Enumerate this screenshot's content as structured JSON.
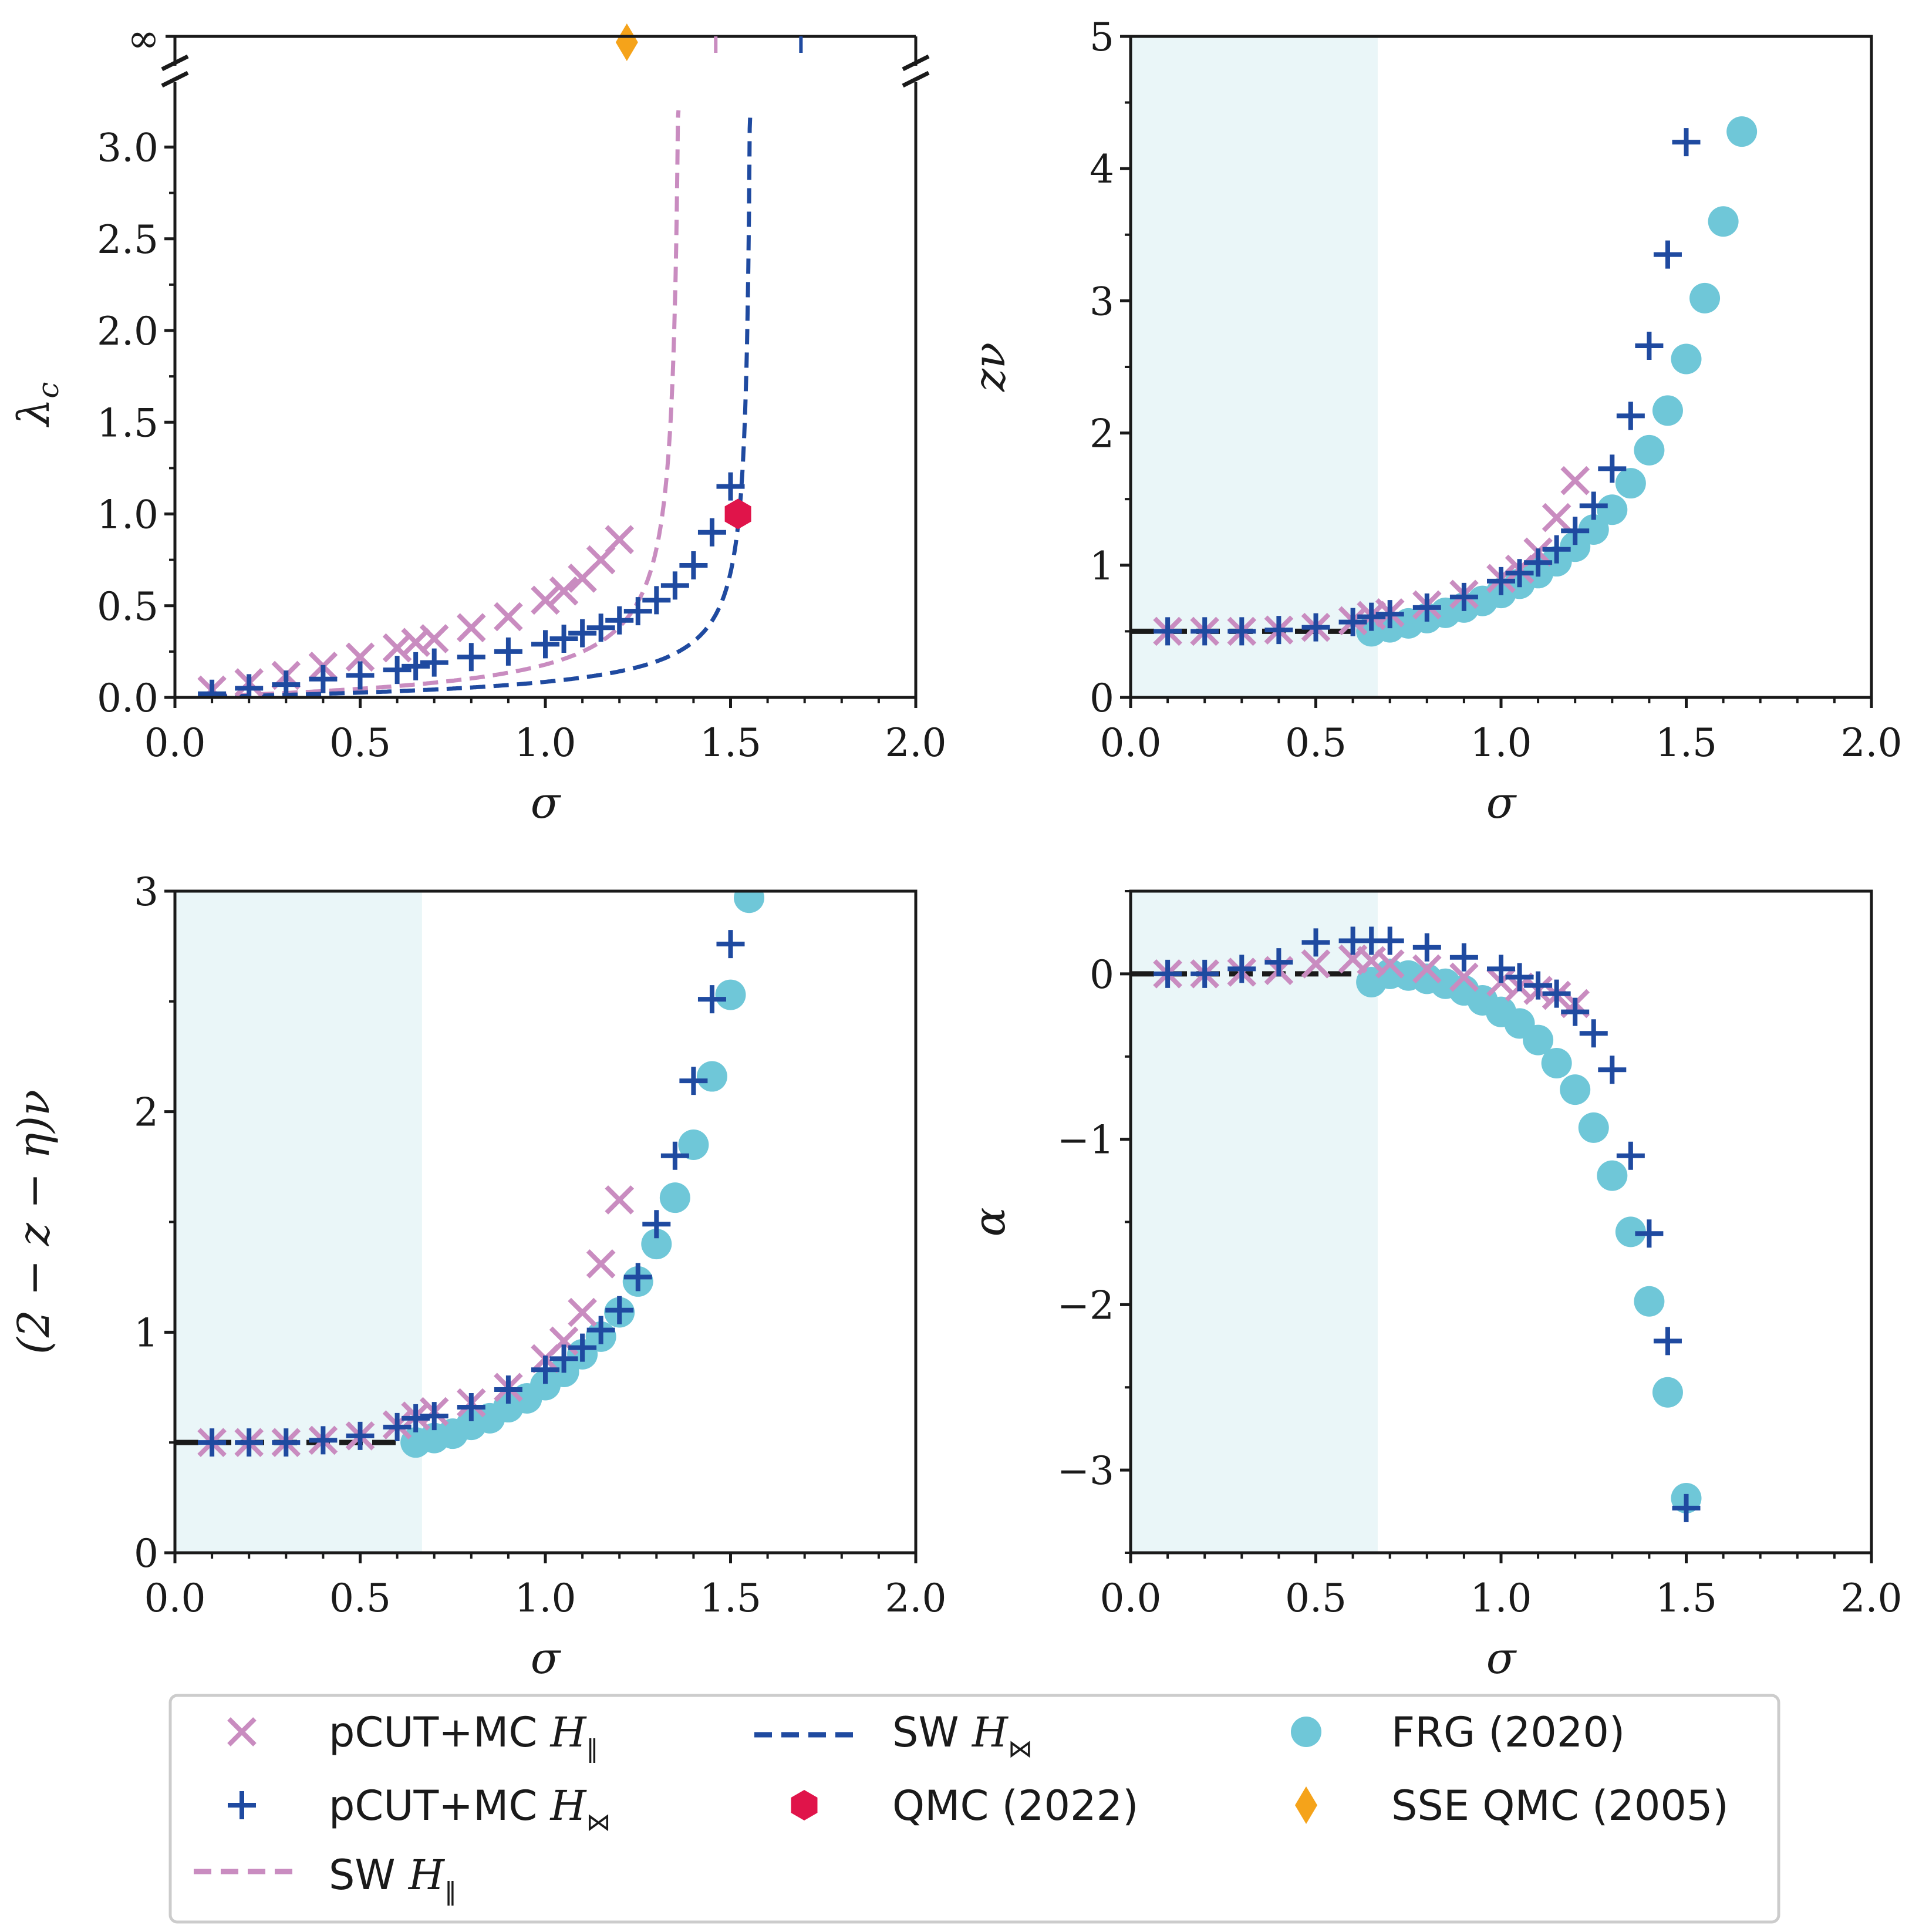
{
  "colors": {
    "pcut_ii": "#c98cc0",
    "pcut_bowtie": "#1f4aa0",
    "sw_ii": "#c98cc0",
    "sw_bowtie": "#1f4aa0",
    "frg": "#6fc7d8",
    "qmc2022": "#e0144a",
    "sse2005": "#f5a31a",
    "shade": "#eaf6f8",
    "mf_line": "#1a1a1a"
  },
  "legend": {
    "pcut_ii": "pCUT+MC",
    "pcut_ii_sym": "H",
    "pcut_ii_sub": "‖",
    "pcut_bowtie": "pCUT+MC",
    "pcut_bowtie_sym": "H",
    "pcut_bowtie_sub": "⋈",
    "sw_ii": "SW",
    "sw_ii_sym": "H",
    "sw_ii_sub": "‖",
    "sw_bowtie": "SW",
    "sw_bowtie_sym": "H",
    "sw_bowtie_sub": "⋈",
    "qmc2022": "QMC (2022)",
    "frg": "FRG (2020)",
    "sse2005": "SSE QMC (2005)"
  },
  "chart_data": [
    {
      "type": "scatter",
      "panel": "top-left",
      "xlabel": "σ",
      "ylabel": "λ_c",
      "ylabel_main": "λ",
      "ylabel_sub": "c",
      "xlim": [
        0,
        2
      ],
      "ylim": [
        0,
        3.2
      ],
      "xticks": [
        "0.0",
        "0.5",
        "1.0",
        "1.5",
        "2.0"
      ],
      "yticks": [
        "0.0",
        "0.5",
        "1.0",
        "1.5",
        "2.0",
        "2.5",
        "3.0"
      ],
      "infinity_label": "∞",
      "shaded_region": null,
      "series": [
        {
          "name": "pCUT+MC H_ii",
          "marker": "x",
          "points": [
            [
              0.1,
              0.04
            ],
            [
              0.2,
              0.08
            ],
            [
              0.3,
              0.12
            ],
            [
              0.4,
              0.17
            ],
            [
              0.5,
              0.22
            ],
            [
              0.6,
              0.27
            ],
            [
              0.65,
              0.3
            ],
            [
              0.7,
              0.32
            ],
            [
              0.8,
              0.38
            ],
            [
              0.9,
              0.44
            ],
            [
              1.0,
              0.53
            ],
            [
              1.05,
              0.58
            ],
            [
              1.1,
              0.65
            ],
            [
              1.15,
              0.75
            ],
            [
              1.2,
              0.86
            ]
          ]
        },
        {
          "name": "pCUT+MC H_bowtie",
          "marker": "+",
          "points": [
            [
              0.1,
              0.02
            ],
            [
              0.2,
              0.05
            ],
            [
              0.3,
              0.07
            ],
            [
              0.4,
              0.1
            ],
            [
              0.5,
              0.12
            ],
            [
              0.6,
              0.15
            ],
            [
              0.65,
              0.17
            ],
            [
              0.7,
              0.19
            ],
            [
              0.8,
              0.22
            ],
            [
              0.9,
              0.25
            ],
            [
              1.0,
              0.29
            ],
            [
              1.05,
              0.32
            ],
            [
              1.1,
              0.35
            ],
            [
              1.15,
              0.38
            ],
            [
              1.2,
              0.42
            ],
            [
              1.25,
              0.47
            ],
            [
              1.3,
              0.53
            ],
            [
              1.35,
              0.61
            ],
            [
              1.4,
              0.72
            ],
            [
              1.45,
              0.9
            ],
            [
              1.5,
              1.15
            ]
          ]
        },
        {
          "name": "SW H_ii",
          "style": "dashed",
          "pole": 1.37,
          "scale": 0.085
        },
        {
          "name": "SW H_bowtie",
          "style": "dashed",
          "pole": 1.56,
          "scale": 0.055
        },
        {
          "name": "QMC (2022)",
          "marker": "hexagon",
          "points": [
            [
              1.52,
              1.0
            ]
          ]
        },
        {
          "name": "SSE QMC (2005)",
          "marker": "diamond",
          "points": [
            [
              1.22,
              "inf"
            ]
          ]
        }
      ],
      "infinity_ticks": [
        1.46,
        1.69
      ]
    },
    {
      "type": "scatter",
      "panel": "top-right",
      "xlabel": "σ",
      "ylabel": "zν",
      "xlim": [
        0,
        2
      ],
      "ylim": [
        0,
        5
      ],
      "xticks": [
        "0.0",
        "0.5",
        "1.0",
        "1.5",
        "2.0"
      ],
      "yticks": [
        "0",
        "1",
        "2",
        "3",
        "4",
        "5"
      ],
      "shaded_region": [
        0,
        0.667
      ],
      "mean_field_line": {
        "x": [
          0,
          0.667
        ],
        "y": 0.5
      },
      "series": [
        {
          "name": "pCUT+MC H_ii",
          "marker": "x",
          "points": [
            [
              0.1,
              0.5
            ],
            [
              0.2,
              0.5
            ],
            [
              0.3,
              0.5
            ],
            [
              0.4,
              0.51
            ],
            [
              0.5,
              0.53
            ],
            [
              0.6,
              0.58
            ],
            [
              0.65,
              0.62
            ],
            [
              0.7,
              0.64
            ],
            [
              0.8,
              0.7
            ],
            [
              0.9,
              0.78
            ],
            [
              1.0,
              0.9
            ],
            [
              1.05,
              0.97
            ],
            [
              1.1,
              1.1
            ],
            [
              1.15,
              1.36
            ],
            [
              1.2,
              1.64
            ]
          ]
        },
        {
          "name": "pCUT+MC H_bowtie",
          "marker": "+",
          "points": [
            [
              0.1,
              0.5
            ],
            [
              0.2,
              0.5
            ],
            [
              0.3,
              0.5
            ],
            [
              0.4,
              0.51
            ],
            [
              0.5,
              0.53
            ],
            [
              0.6,
              0.57
            ],
            [
              0.65,
              0.61
            ],
            [
              0.7,
              0.63
            ],
            [
              0.8,
              0.68
            ],
            [
              0.9,
              0.76
            ],
            [
              1.0,
              0.88
            ],
            [
              1.05,
              0.94
            ],
            [
              1.1,
              1.02
            ],
            [
              1.15,
              1.12
            ],
            [
              1.2,
              1.26
            ],
            [
              1.25,
              1.45
            ],
            [
              1.3,
              1.73
            ],
            [
              1.35,
              2.13
            ],
            [
              1.4,
              2.66
            ],
            [
              1.45,
              3.35
            ],
            [
              1.5,
              4.2
            ]
          ]
        },
        {
          "name": "FRG (2020)",
          "marker": "circle",
          "points": [
            [
              0.65,
              0.5
            ],
            [
              0.7,
              0.53
            ],
            [
              0.75,
              0.56
            ],
            [
              0.8,
              0.6
            ],
            [
              0.85,
              0.64
            ],
            [
              0.9,
              0.68
            ],
            [
              0.95,
              0.73
            ],
            [
              1.0,
              0.79
            ],
            [
              1.05,
              0.86
            ],
            [
              1.1,
              0.94
            ],
            [
              1.15,
              1.03
            ],
            [
              1.2,
              1.14
            ],
            [
              1.25,
              1.27
            ],
            [
              1.3,
              1.42
            ],
            [
              1.35,
              1.62
            ],
            [
              1.4,
              1.87
            ],
            [
              1.45,
              2.17
            ],
            [
              1.5,
              2.56
            ],
            [
              1.55,
              3.02
            ],
            [
              1.6,
              3.6
            ],
            [
              1.65,
              4.28
            ]
          ]
        }
      ]
    },
    {
      "type": "scatter",
      "panel": "bottom-left",
      "xlabel": "σ",
      "ylabel": "(2 − z − η)ν",
      "xlim": [
        0,
        2
      ],
      "ylim": [
        0,
        3
      ],
      "xticks": [
        "0.0",
        "0.5",
        "1.0",
        "1.5",
        "2.0"
      ],
      "yticks": [
        "0",
        "1",
        "2",
        "3"
      ],
      "shaded_region": [
        0,
        0.667
      ],
      "mean_field_line": {
        "x": [
          0,
          0.667
        ],
        "y": 0.5
      },
      "series": [
        {
          "name": "pCUT+MC H_ii",
          "marker": "x",
          "points": [
            [
              0.1,
              0.5
            ],
            [
              0.2,
              0.5
            ],
            [
              0.3,
              0.5
            ],
            [
              0.4,
              0.51
            ],
            [
              0.5,
              0.53
            ],
            [
              0.6,
              0.58
            ],
            [
              0.65,
              0.62
            ],
            [
              0.7,
              0.64
            ],
            [
              0.8,
              0.68
            ],
            [
              0.9,
              0.75
            ],
            [
              1.0,
              0.88
            ],
            [
              1.05,
              0.96
            ],
            [
              1.1,
              1.09
            ],
            [
              1.15,
              1.31
            ],
            [
              1.2,
              1.6
            ]
          ]
        },
        {
          "name": "pCUT+MC H_bowtie",
          "marker": "+",
          "points": [
            [
              0.1,
              0.5
            ],
            [
              0.2,
              0.5
            ],
            [
              0.3,
              0.5
            ],
            [
              0.4,
              0.51
            ],
            [
              0.5,
              0.53
            ],
            [
              0.6,
              0.57
            ],
            [
              0.65,
              0.61
            ],
            [
              0.7,
              0.62
            ],
            [
              0.8,
              0.66
            ],
            [
              0.9,
              0.74
            ],
            [
              1.0,
              0.83
            ],
            [
              1.05,
              0.88
            ],
            [
              1.1,
              0.93
            ],
            [
              1.15,
              1.01
            ],
            [
              1.2,
              1.1
            ],
            [
              1.25,
              1.25
            ],
            [
              1.3,
              1.49
            ],
            [
              1.35,
              1.8
            ],
            [
              1.4,
              2.14
            ],
            [
              1.45,
              2.51
            ],
            [
              1.5,
              2.76
            ]
          ]
        },
        {
          "name": "FRG (2020)",
          "marker": "circle",
          "points": [
            [
              0.65,
              0.5
            ],
            [
              0.7,
              0.52
            ],
            [
              0.75,
              0.54
            ],
            [
              0.8,
              0.58
            ],
            [
              0.85,
              0.61
            ],
            [
              0.9,
              0.66
            ],
            [
              0.95,
              0.7
            ],
            [
              1.0,
              0.76
            ],
            [
              1.05,
              0.82
            ],
            [
              1.1,
              0.9
            ],
            [
              1.15,
              0.98
            ],
            [
              1.2,
              1.09
            ],
            [
              1.25,
              1.23
            ],
            [
              1.3,
              1.4
            ],
            [
              1.35,
              1.61
            ],
            [
              1.4,
              1.85
            ],
            [
              1.45,
              2.16
            ],
            [
              1.5,
              2.53
            ],
            [
              1.55,
              2.97
            ]
          ]
        }
      ]
    },
    {
      "type": "scatter",
      "panel": "bottom-right",
      "xlabel": "σ",
      "ylabel": "α",
      "xlim": [
        0,
        2
      ],
      "ylim": [
        -3.5,
        0.5
      ],
      "xticks": [
        "0.0",
        "0.5",
        "1.0",
        "1.5",
        "2.0"
      ],
      "yticks": [
        "−3",
        "−2",
        "−1",
        "0"
      ],
      "ytick_values": [
        -3,
        -2,
        -1,
        0
      ],
      "shaded_region": [
        0,
        0.667
      ],
      "mean_field_line": {
        "x": [
          0,
          0.667
        ],
        "y": 0
      },
      "series": [
        {
          "name": "pCUT+MC H_ii",
          "marker": "x",
          "points": [
            [
              0.1,
              0
            ],
            [
              0.2,
              0
            ],
            [
              0.3,
              0.01
            ],
            [
              0.4,
              0.02
            ],
            [
              0.5,
              0.06
            ],
            [
              0.6,
              0.09
            ],
            [
              0.65,
              0.08
            ],
            [
              0.7,
              0.06
            ],
            [
              0.8,
              0.03
            ],
            [
              0.9,
              -0.02
            ],
            [
              1.0,
              -0.05
            ],
            [
              1.05,
              -0.08
            ],
            [
              1.1,
              -0.1
            ],
            [
              1.15,
              -0.13
            ],
            [
              1.2,
              -0.18
            ]
          ]
        },
        {
          "name": "pCUT+MC H_bowtie",
          "marker": "+",
          "points": [
            [
              0.1,
              0
            ],
            [
              0.2,
              0
            ],
            [
              0.3,
              0.03
            ],
            [
              0.4,
              0.07
            ],
            [
              0.5,
              0.19
            ],
            [
              0.6,
              0.2
            ],
            [
              0.65,
              0.2
            ],
            [
              0.7,
              0.2
            ],
            [
              0.8,
              0.16
            ],
            [
              0.9,
              0.1
            ],
            [
              1.0,
              0.03
            ],
            [
              1.05,
              -0.02
            ],
            [
              1.1,
              -0.07
            ],
            [
              1.15,
              -0.12
            ],
            [
              1.2,
              -0.23
            ],
            [
              1.25,
              -0.36
            ],
            [
              1.3,
              -0.58
            ],
            [
              1.35,
              -1.1
            ],
            [
              1.4,
              -1.57
            ],
            [
              1.45,
              -2.22
            ],
            [
              1.5,
              -3.23
            ]
          ]
        },
        {
          "name": "FRG (2020)",
          "marker": "circle",
          "points": [
            [
              0.65,
              -0.05
            ],
            [
              0.7,
              0.0
            ],
            [
              0.75,
              -0.01
            ],
            [
              0.8,
              -0.03
            ],
            [
              0.85,
              -0.06
            ],
            [
              0.9,
              -0.1
            ],
            [
              0.95,
              -0.16
            ],
            [
              1.0,
              -0.23
            ],
            [
              1.05,
              -0.3
            ],
            [
              1.1,
              -0.4
            ],
            [
              1.15,
              -0.54
            ],
            [
              1.2,
              -0.7
            ],
            [
              1.25,
              -0.93
            ],
            [
              1.3,
              -1.22
            ],
            [
              1.35,
              -1.56
            ],
            [
              1.4,
              -1.98
            ],
            [
              1.45,
              -2.53
            ],
            [
              1.5,
              -3.17
            ]
          ]
        }
      ]
    }
  ]
}
